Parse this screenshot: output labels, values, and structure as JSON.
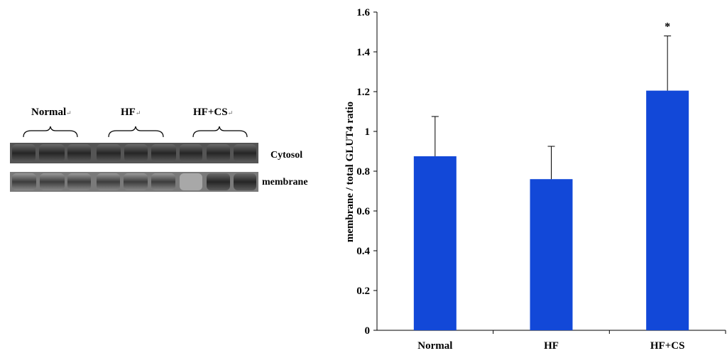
{
  "blot": {
    "groups": [
      {
        "label": "Normal",
        "mark": "↵"
      },
      {
        "label": "HF",
        "mark": "↵"
      },
      {
        "label": "HF+CS",
        "mark": "↵"
      }
    ],
    "rows": [
      {
        "label": "Cytosol"
      },
      {
        "label": "membrane"
      }
    ]
  },
  "chart_data": {
    "type": "bar",
    "categories": [
      "Normal",
      "HF",
      "HF+CS"
    ],
    "values": [
      0.875,
      0.76,
      1.205
    ],
    "error_bars": [
      0.2,
      0.165,
      0.275
    ],
    "annotations": [
      "",
      "",
      "*"
    ],
    "ylabel": "membrane / total GLUT4 ratio",
    "xlabel": "",
    "ylim": [
      0,
      1.6
    ],
    "yticks": [
      "0",
      "0.2",
      "0.4",
      "0.6",
      "0.8",
      "1",
      "1.2",
      "1.4",
      "1.6"
    ],
    "grid": false,
    "bar_color": "#1248d8"
  }
}
